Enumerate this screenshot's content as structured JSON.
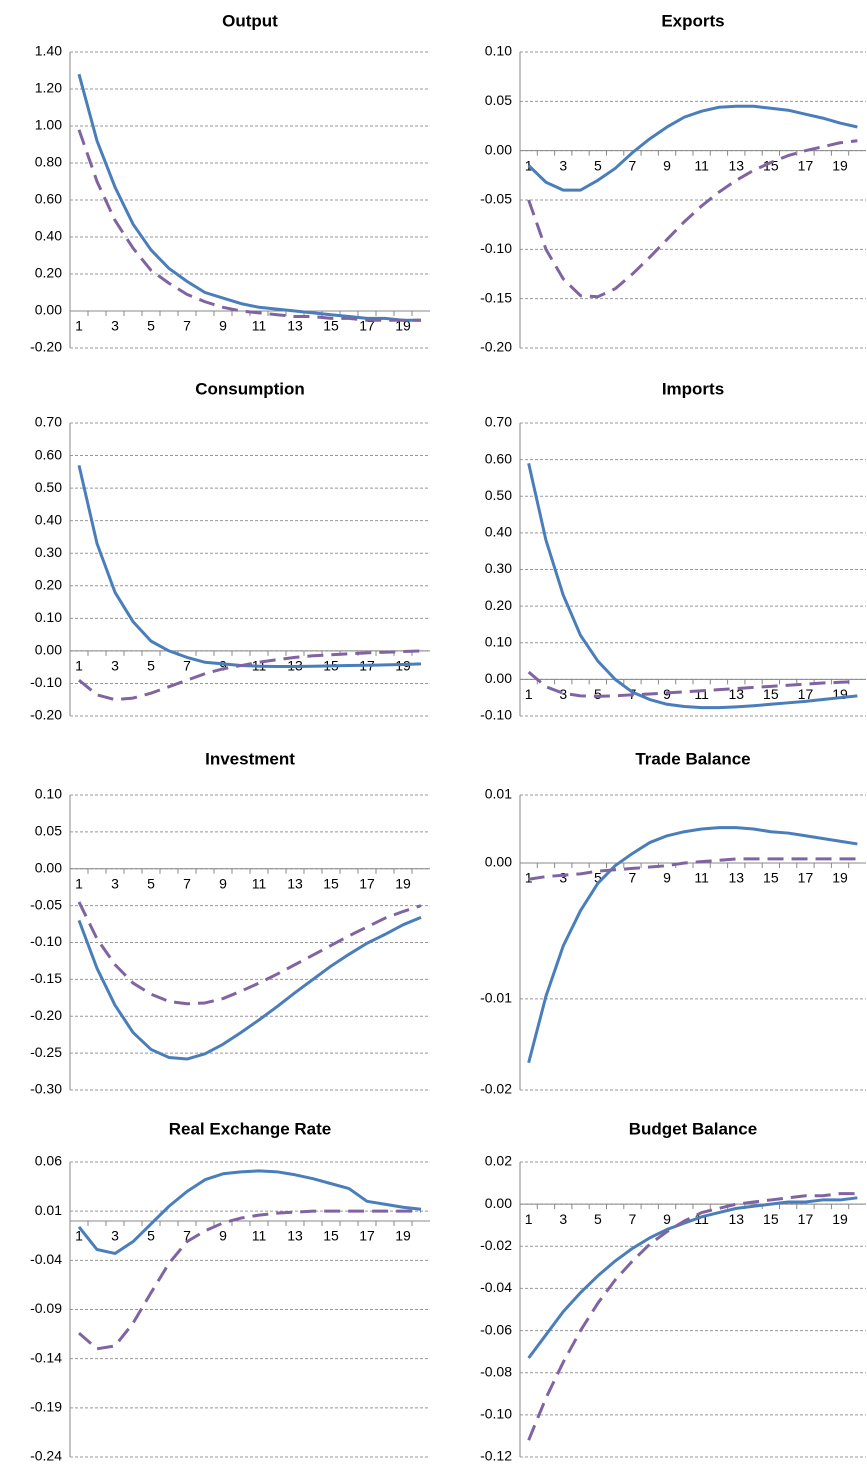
{
  "chart_data": [
    {
      "type": "line",
      "title": "Output",
      "x": [
        1,
        2,
        3,
        4,
        5,
        6,
        7,
        8,
        9,
        10,
        11,
        12,
        13,
        14,
        15,
        16,
        17,
        18,
        19,
        20
      ],
      "xlim": [
        0.5,
        20.5
      ],
      "xticks": [
        1,
        3,
        5,
        7,
        9,
        11,
        13,
        15,
        17,
        19
      ],
      "ylim": [
        -0.2,
        1.4
      ],
      "yticks": [
        {
          "value": -0.2,
          "label": "-0.20"
        },
        {
          "value": 0,
          "label": "0.00"
        },
        {
          "value": 0.2,
          "label": "0.20"
        },
        {
          "value": 0.4,
          "label": "0.40"
        },
        {
          "value": 0.6,
          "label": "0.60"
        },
        {
          "value": 0.8,
          "label": "0.80"
        },
        {
          "value": 1.0,
          "label": "1.00"
        },
        {
          "value": 1.2,
          "label": "1.20"
        },
        {
          "value": 1.4,
          "label": "1.40"
        }
      ],
      "grid": true,
      "series": [
        {
          "color": "#4a7ebb",
          "values": [
            1.28,
            0.92,
            0.67,
            0.47,
            0.33,
            0.23,
            0.16,
            0.1,
            0.07,
            0.04,
            0.02,
            0.01,
            0.0,
            -0.01,
            -0.02,
            -0.03,
            -0.04,
            -0.04,
            -0.05,
            -0.05
          ]
        },
        {
          "color": "#8064a2",
          "dash": true,
          "values": [
            0.98,
            0.7,
            0.49,
            0.34,
            0.22,
            0.15,
            0.09,
            0.05,
            0.02,
            0.0,
            -0.01,
            -0.02,
            -0.03,
            -0.03,
            -0.04,
            -0.04,
            -0.05,
            -0.05,
            -0.05,
            -0.05
          ]
        }
      ]
    },
    {
      "type": "line",
      "title": "Exports",
      "x": [
        1,
        2,
        3,
        4,
        5,
        6,
        7,
        8,
        9,
        10,
        11,
        12,
        13,
        14,
        15,
        16,
        17,
        18,
        19,
        20
      ],
      "xlim": [
        0.5,
        20.5
      ],
      "xticks": [
        1,
        3,
        5,
        7,
        9,
        11,
        13,
        15,
        17,
        19
      ],
      "ylim": [
        -0.2,
        0.1
      ],
      "yticks": [
        {
          "value": -0.2,
          "label": "-0.20"
        },
        -0.15,
        {
          "value": -0.1,
          "label": "-0.10"
        },
        -0.05,
        {
          "value": 0,
          "label": "0.00"
        },
        0.05,
        {
          "value": 0.1,
          "label": "0.10"
        }
      ],
      "grid": true,
      "series": [
        {
          "color": "#4a7ebb",
          "values": [
            -0.015,
            -0.032,
            -0.04,
            -0.04,
            -0.03,
            -0.018,
            -0.002,
            0.012,
            0.024,
            0.034,
            0.04,
            0.044,
            0.045,
            0.045,
            0.043,
            0.041,
            0.037,
            0.033,
            0.028,
            0.024
          ]
        },
        {
          "color": "#8064a2",
          "dash": true,
          "values": [
            -0.05,
            -0.1,
            -0.13,
            -0.147,
            -0.148,
            -0.14,
            -0.125,
            -0.108,
            -0.09,
            -0.072,
            -0.056,
            -0.042,
            -0.03,
            -0.02,
            -0.012,
            -0.005,
            0.0,
            0.004,
            0.008,
            0.01
          ]
        }
      ]
    },
    {
      "type": "line",
      "title": "Consumption",
      "x": [
        1,
        2,
        3,
        4,
        5,
        6,
        7,
        8,
        9,
        10,
        11,
        12,
        13,
        14,
        15,
        16,
        17,
        18,
        19,
        20
      ],
      "xlim": [
        0.5,
        20.5
      ],
      "xticks": [
        1,
        3,
        5,
        7,
        9,
        11,
        13,
        15,
        17,
        19
      ],
      "ylim": [
        -0.2,
        0.7
      ],
      "yticks": [
        {
          "value": -0.2,
          "label": "-0.20"
        },
        {
          "value": -0.1,
          "label": "-0.10"
        },
        {
          "value": 0,
          "label": "0.00"
        },
        {
          "value": 0.1,
          "label": "0.10"
        },
        {
          "value": 0.2,
          "label": "0.20"
        },
        {
          "value": 0.3,
          "label": "0.30"
        },
        {
          "value": 0.4,
          "label": "0.40"
        },
        {
          "value": 0.5,
          "label": "0.50"
        },
        {
          "value": 0.6,
          "label": "0.60"
        },
        {
          "value": 0.7,
          "label": "0.70"
        }
      ],
      "grid": true,
      "series": [
        {
          "color": "#4a7ebb",
          "values": [
            0.57,
            0.33,
            0.18,
            0.09,
            0.03,
            0.0,
            -0.02,
            -0.035,
            -0.04,
            -0.045,
            -0.047,
            -0.048,
            -0.048,
            -0.047,
            -0.046,
            -0.045,
            -0.044,
            -0.043,
            -0.042,
            -0.04
          ]
        },
        {
          "color": "#8064a2",
          "dash": true,
          "values": [
            -0.09,
            -0.135,
            -0.15,
            -0.145,
            -0.13,
            -0.11,
            -0.09,
            -0.07,
            -0.055,
            -0.045,
            -0.035,
            -0.027,
            -0.02,
            -0.015,
            -0.012,
            -0.009,
            -0.006,
            -0.004,
            -0.002,
            0.0
          ]
        }
      ]
    },
    {
      "type": "line",
      "title": "Imports",
      "x": [
        1,
        2,
        3,
        4,
        5,
        6,
        7,
        8,
        9,
        10,
        11,
        12,
        13,
        14,
        15,
        16,
        17,
        18,
        19,
        20
      ],
      "xlim": [
        0.5,
        20.5
      ],
      "xticks": [
        1,
        3,
        5,
        7,
        9,
        11,
        13,
        15,
        17,
        19
      ],
      "ylim": [
        -0.1,
        0.7
      ],
      "yticks": [
        {
          "value": -0.1,
          "label": "-0.10"
        },
        {
          "value": 0,
          "label": "0.00"
        },
        {
          "value": 0.1,
          "label": "0.10"
        },
        {
          "value": 0.2,
          "label": "0.20"
        },
        {
          "value": 0.3,
          "label": "0.30"
        },
        {
          "value": 0.4,
          "label": "0.40"
        },
        {
          "value": 0.5,
          "label": "0.50"
        },
        {
          "value": 0.6,
          "label": "0.60"
        },
        {
          "value": 0.7,
          "label": "0.70"
        }
      ],
      "grid": true,
      "series": [
        {
          "color": "#4a7ebb",
          "values": [
            0.59,
            0.38,
            0.23,
            0.12,
            0.05,
            0.0,
            -0.035,
            -0.055,
            -0.068,
            -0.074,
            -0.077,
            -0.077,
            -0.075,
            -0.072,
            -0.068,
            -0.064,
            -0.06,
            -0.055,
            -0.05,
            -0.045
          ]
        },
        {
          "color": "#8064a2",
          "dash": true,
          "values": [
            0.02,
            -0.02,
            -0.038,
            -0.045,
            -0.046,
            -0.045,
            -0.042,
            -0.04,
            -0.037,
            -0.034,
            -0.031,
            -0.028,
            -0.025,
            -0.022,
            -0.019,
            -0.016,
            -0.013,
            -0.01,
            -0.008,
            -0.006
          ]
        }
      ]
    },
    {
      "type": "line",
      "title": "Investment",
      "x": [
        1,
        2,
        3,
        4,
        5,
        6,
        7,
        8,
        9,
        10,
        11,
        12,
        13,
        14,
        15,
        16,
        17,
        18,
        19,
        20
      ],
      "xlim": [
        0.5,
        20.5
      ],
      "xticks": [
        1,
        3,
        5,
        7,
        9,
        11,
        13,
        15,
        17,
        19
      ],
      "ylim": [
        -0.3,
        0.1
      ],
      "yticks": [
        {
          "value": -0.3,
          "label": "-0.30"
        },
        -0.25,
        {
          "value": -0.2,
          "label": "-0.20"
        },
        -0.15,
        {
          "value": -0.1,
          "label": "-0.10"
        },
        -0.05,
        {
          "value": 0,
          "label": "0.00"
        },
        0.05,
        {
          "value": 0.1,
          "label": "0.10"
        }
      ],
      "grid": true,
      "series": [
        {
          "color": "#4a7ebb",
          "values": [
            -0.07,
            -0.135,
            -0.185,
            -0.222,
            -0.245,
            -0.256,
            -0.258,
            -0.251,
            -0.238,
            -0.222,
            -0.205,
            -0.187,
            -0.168,
            -0.15,
            -0.132,
            -0.116,
            -0.101,
            -0.089,
            -0.076,
            -0.066
          ]
        },
        {
          "color": "#8064a2",
          "dash": true,
          "values": [
            -0.045,
            -0.095,
            -0.13,
            -0.155,
            -0.17,
            -0.18,
            -0.183,
            -0.182,
            -0.176,
            -0.166,
            -0.155,
            -0.143,
            -0.13,
            -0.117,
            -0.104,
            -0.091,
            -0.079,
            -0.067,
            -0.058,
            -0.05
          ]
        }
      ]
    },
    {
      "type": "line",
      "title": "Trade Balance",
      "x": [
        1,
        2,
        3,
        4,
        5,
        6,
        7,
        8,
        9,
        10,
        11,
        12,
        13,
        14,
        15,
        16,
        17,
        18,
        19,
        20
      ],
      "xlim": [
        0.5,
        20.5
      ],
      "xticks": [
        1,
        3,
        5,
        7,
        9,
        11,
        13,
        15,
        17,
        19
      ],
      "ylim": [
        -0.0167,
        0.005
      ],
      "yticks": [
        {
          "value": -0.0167,
          "label": "-0.02"
        },
        {
          "value": -0.01,
          "label": "-0.01"
        },
        {
          "value": 0,
          "label": "0.00"
        },
        {
          "value": 0.005,
          "label": "0.01"
        }
      ],
      "grid": true,
      "series": [
        {
          "color": "#4a7ebb",
          "values": [
            -0.0147,
            -0.0098,
            -0.0061,
            -0.0035,
            -0.0015,
            -0.0002,
            0.0007,
            0.0015,
            0.002,
            0.0023,
            0.0025,
            0.0026,
            0.0026,
            0.0025,
            0.0023,
            0.0022,
            0.002,
            0.0018,
            0.0016,
            0.0014
          ]
        },
        {
          "color": "#8064a2",
          "dash": true,
          "values": [
            -0.0012,
            -0.001,
            -0.0009,
            -0.0008,
            -0.0006,
            -0.0005,
            -0.0004,
            -0.0003,
            -0.0002,
            0.0,
            0.0001,
            0.0002,
            0.0003,
            0.0003,
            0.0003,
            0.0003,
            0.0003,
            0.0003,
            0.0003,
            0.0003
          ]
        }
      ]
    },
    {
      "type": "line",
      "title": "Real Exchange Rate",
      "x": [
        1,
        2,
        3,
        4,
        5,
        6,
        7,
        8,
        9,
        10,
        11,
        12,
        13,
        14,
        15,
        16,
        17,
        18,
        19,
        20
      ],
      "xlim": [
        0.5,
        20.5
      ],
      "xticks": [
        1,
        3,
        5,
        7,
        9,
        11,
        13,
        15,
        17,
        19
      ],
      "ylim": [
        -0.24,
        0.06
      ],
      "yticks": [
        -0.24,
        -0.19,
        -0.14,
        -0.09,
        -0.04,
        0.01,
        0.06
      ],
      "grid": true,
      "series": [
        {
          "color": "#4a7ebb",
          "values": [
            -0.006,
            -0.029,
            -0.033,
            -0.021,
            -0.003,
            0.015,
            0.03,
            0.042,
            0.048,
            0.05,
            0.051,
            0.05,
            0.047,
            0.043,
            0.038,
            0.033,
            0.02,
            0.017,
            0.014,
            0.012
          ]
        },
        {
          "color": "#8064a2",
          "dash": true,
          "values": [
            -0.114,
            -0.13,
            -0.127,
            -0.104,
            -0.073,
            -0.043,
            -0.021,
            -0.01,
            -0.002,
            0.003,
            0.006,
            0.008,
            0.009,
            0.01,
            0.01,
            0.01,
            0.01,
            0.01,
            0.01,
            0.01
          ]
        }
      ]
    },
    {
      "type": "line",
      "title": "Budget Balance",
      "x": [
        1,
        2,
        3,
        4,
        5,
        6,
        7,
        8,
        9,
        10,
        11,
        12,
        13,
        14,
        15,
        16,
        17,
        18,
        19,
        20
      ],
      "xlim": [
        0.5,
        20.5
      ],
      "xticks": [
        1,
        3,
        5,
        7,
        9,
        11,
        13,
        15,
        17,
        19
      ],
      "ylim": [
        -0.12,
        0.02
      ],
      "yticks": [
        -0.12,
        {
          "value": -0.1,
          "label": "-0.10"
        },
        -0.08,
        -0.06,
        -0.04,
        -0.02,
        {
          "value": 0,
          "label": "0.00"
        },
        0.02
      ],
      "grid": true,
      "series": [
        {
          "color": "#4a7ebb",
          "values": [
            -0.073,
            -0.062,
            -0.051,
            -0.042,
            -0.034,
            -0.027,
            -0.021,
            -0.016,
            -0.012,
            -0.009,
            -0.006,
            -0.004,
            -0.002,
            -0.001,
            0.0,
            0.001,
            0.001,
            0.002,
            0.002,
            0.003
          ]
        },
        {
          "color": "#8064a2",
          "dash": true,
          "values": [
            -0.112,
            -0.092,
            -0.075,
            -0.06,
            -0.047,
            -0.036,
            -0.027,
            -0.019,
            -0.013,
            -0.008,
            -0.004,
            -0.002,
            0.0,
            0.001,
            0.002,
            0.003,
            0.004,
            0.004,
            0.005,
            0.005
          ]
        }
      ]
    }
  ]
}
